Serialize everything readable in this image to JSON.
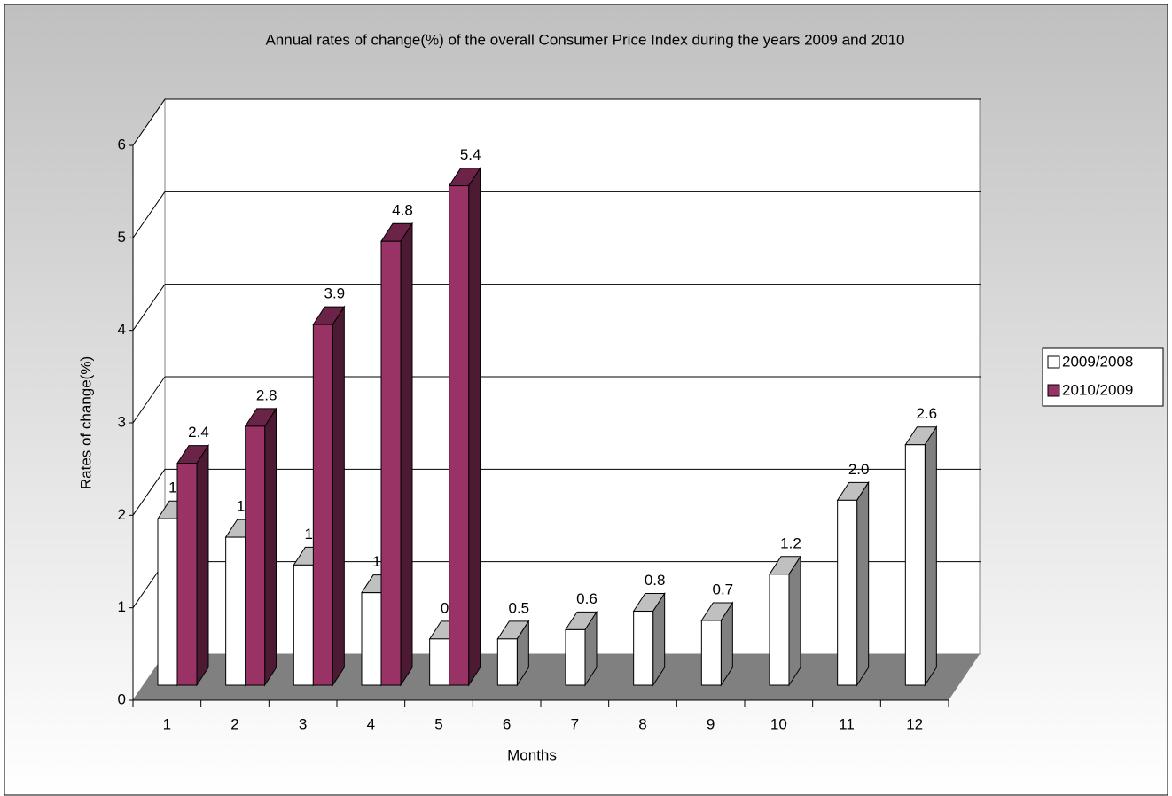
{
  "chart_data": {
    "type": "bar3d",
    "title": "Annual rates of change(%) of the overall Consumer Price Index during the years 2009 and 2010",
    "x_label": "Months",
    "y_label": "Rates of change(%)",
    "categories": [
      "1",
      "2",
      "3",
      "4",
      "5",
      "6",
      "7",
      "8",
      "9",
      "10",
      "11",
      "12"
    ],
    "series": [
      {
        "name": "2009/2008",
        "color": "#ffffff",
        "values": [
          1.8,
          1.6,
          1.3,
          1.0,
          0.5,
          0.5,
          0.6,
          0.8,
          0.7,
          1.2,
          2.0,
          2.6
        ],
        "value_labels": [
          "1.8",
          "1.6",
          "1.3",
          "1.0",
          "0.5",
          "0.5",
          "0.6",
          "0.8",
          "0.7",
          "1.2",
          "2.0",
          "2.6"
        ]
      },
      {
        "name": "2010/2009",
        "color": "#993366",
        "values": [
          2.4,
          2.8,
          3.9,
          4.8,
          5.4,
          null,
          null,
          null,
          null,
          null,
          null,
          null
        ],
        "value_labels": [
          "2.4",
          "2.8",
          "3.9",
          "4.8",
          "5.4",
          null,
          null,
          null,
          null,
          null,
          null,
          null
        ]
      }
    ],
    "ylim": [
      0,
      6
    ],
    "yticks": [
      0,
      1,
      2,
      3,
      4,
      5,
      6
    ],
    "grid": true,
    "legend": "right"
  }
}
